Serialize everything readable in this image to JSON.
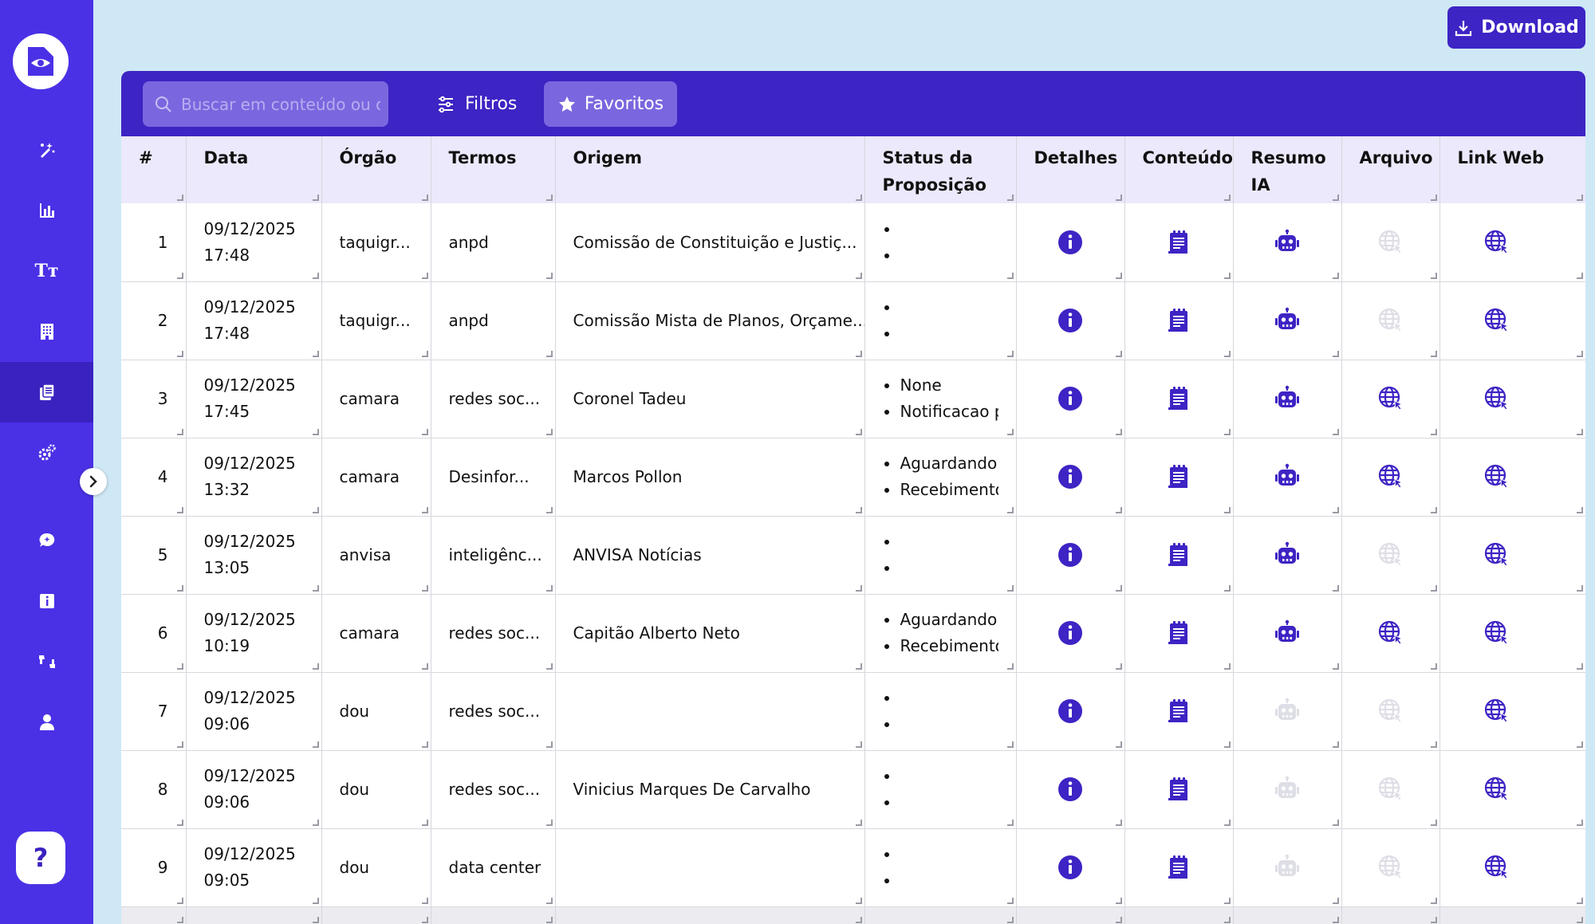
{
  "sidebar": {
    "items": [
      {
        "icon": "magic-wand-icon"
      },
      {
        "icon": "bar-chart-icon"
      },
      {
        "icon": "text-size-icon",
        "label": "Tт"
      },
      {
        "icon": "building-icon"
      },
      {
        "icon": "documents-icon",
        "active": true
      },
      {
        "icon": "settings-gears-icon"
      },
      {
        "icon": "chat-ai-icon"
      },
      {
        "icon": "info-icon"
      },
      {
        "icon": "feedback-icon"
      },
      {
        "icon": "user-icon"
      }
    ],
    "help_label": "?"
  },
  "download_label": "Download",
  "toolbar": {
    "search_placeholder": "Buscar em conteúdo ou ori",
    "filters_label": "Filtros",
    "favorites_label": "Favoritos"
  },
  "table": {
    "headers": [
      "#",
      "Data",
      "Órgão",
      "Termos",
      "Origem",
      "Status da Proposição",
      "Detalhes",
      "Conteúdo",
      "Resumo IA",
      "Arquivo",
      "Link Web"
    ],
    "rows": [
      {
        "num": "1",
        "date": "09/12/2025",
        "time": "17:48",
        "orgao": "taquigr...",
        "termos": "anpd",
        "origem": "Comissão de Constituição e Justiç...",
        "status": [
          "",
          ""
        ],
        "resumo": true,
        "arquivo": false
      },
      {
        "num": "2",
        "date": "09/12/2025",
        "time": "17:48",
        "orgao": "taquigr...",
        "termos": "anpd",
        "origem": "Comissão Mista de Planos, Orçame...",
        "status": [
          "",
          ""
        ],
        "resumo": true,
        "arquivo": false
      },
      {
        "num": "3",
        "date": "09/12/2025",
        "time": "17:45",
        "orgao": "camara",
        "termos": "redes soc...",
        "origem": "Coronel Tadeu",
        "status": [
          "None",
          "Notificacao p"
        ],
        "resumo": true,
        "arquivo": true
      },
      {
        "num": "4",
        "date": "09/12/2025",
        "time": "13:32",
        "orgao": "camara",
        "termos": "Desinfor...",
        "origem": "Marcos Pollon",
        "status": [
          "Aguardando F",
          "Recebimento"
        ],
        "resumo": true,
        "arquivo": true
      },
      {
        "num": "5",
        "date": "09/12/2025",
        "time": "13:05",
        "orgao": "anvisa",
        "termos": "inteligênc...",
        "origem": "ANVISA Notícias",
        "status": [
          "",
          ""
        ],
        "resumo": true,
        "arquivo": false
      },
      {
        "num": "6",
        "date": "09/12/2025",
        "time": "10:19",
        "orgao": "camara",
        "termos": "redes soc...",
        "origem": "Capitão Alberto Neto",
        "status": [
          "Aguardando F",
          "Recebimento"
        ],
        "resumo": true,
        "arquivo": true
      },
      {
        "num": "7",
        "date": "09/12/2025",
        "time": "09:06",
        "orgao": "dou",
        "termos": "redes soc...",
        "origem": "",
        "status": [
          "",
          ""
        ],
        "resumo": false,
        "arquivo": false
      },
      {
        "num": "8",
        "date": "09/12/2025",
        "time": "09:06",
        "orgao": "dou",
        "termos": "redes soc...",
        "origem": "Vinicius Marques De Carvalho",
        "status": [
          "",
          ""
        ],
        "resumo": false,
        "arquivo": false
      },
      {
        "num": "9",
        "date": "09/12/2025",
        "time": "09:05",
        "orgao": "dou",
        "termos": "data center",
        "origem": "",
        "status": [
          "",
          ""
        ],
        "resumo": false,
        "arquivo": false
      }
    ]
  },
  "colors": {
    "sidebar": "#4a31e6",
    "primary": "#3d24c4",
    "icon_active": "#3d24c4",
    "icon_disabled": "#dedee6"
  }
}
